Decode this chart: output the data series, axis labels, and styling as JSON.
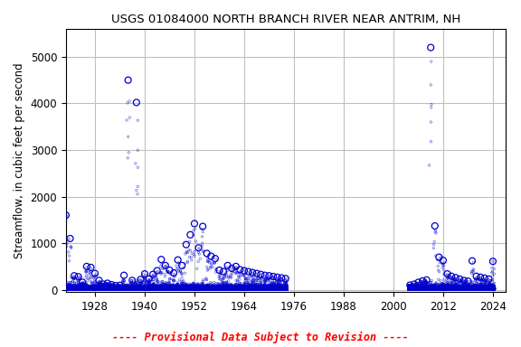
{
  "title": "USGS 01084000 NORTH BRANCH RIVER NEAR ANTRIM, NH",
  "ylabel": "Streamflow, in cubic feet per second",
  "footnote": "---- Provisional Data Subject to Revision ----",
  "footnote_color": "#ff0000",
  "marker_color": "#0000cc",
  "background_color": "#ffffff",
  "grid_color": "#c0c0c0",
  "xlim": [
    1921,
    2027
  ],
  "ylim": [
    -50,
    5600
  ],
  "xticks": [
    1928,
    1940,
    1952,
    1964,
    1976,
    1988,
    2000,
    2012,
    2024
  ],
  "yticks": [
    0,
    1000,
    2000,
    3000,
    4000,
    5000
  ],
  "title_fontsize": 9.5,
  "axis_fontsize": 8.5,
  "tick_fontsize": 8.5,
  "seed": 42,
  "era1_start": 1920,
  "era1_end": 1975,
  "era2_start": 2004,
  "era2_end": 2025,
  "annual_peaks": [
    [
      1921,
      1600
    ],
    [
      1922,
      1100
    ],
    [
      1923,
      300
    ],
    [
      1924,
      280
    ],
    [
      1925,
      160
    ],
    [
      1926,
      500
    ],
    [
      1927,
      480
    ],
    [
      1928,
      350
    ],
    [
      1929,
      200
    ],
    [
      1930,
      120
    ],
    [
      1931,
      140
    ],
    [
      1932,
      110
    ],
    [
      1933,
      90
    ],
    [
      1934,
      95
    ],
    [
      1935,
      310
    ],
    [
      1936,
      4500
    ],
    [
      1937,
      200
    ],
    [
      1938,
      4020
    ],
    [
      1939,
      220
    ],
    [
      1940,
      340
    ],
    [
      1941,
      230
    ],
    [
      1942,
      330
    ],
    [
      1943,
      410
    ],
    [
      1944,
      650
    ],
    [
      1945,
      520
    ],
    [
      1946,
      420
    ],
    [
      1947,
      360
    ],
    [
      1948,
      640
    ],
    [
      1949,
      520
    ],
    [
      1950,
      970
    ],
    [
      1951,
      1180
    ],
    [
      1952,
      1420
    ],
    [
      1953,
      900
    ],
    [
      1954,
      1360
    ],
    [
      1955,
      780
    ],
    [
      1956,
      720
    ],
    [
      1957,
      670
    ],
    [
      1958,
      420
    ],
    [
      1959,
      390
    ],
    [
      1960,
      520
    ],
    [
      1961,
      460
    ],
    [
      1962,
      500
    ],
    [
      1963,
      430
    ],
    [
      1964,
      410
    ],
    [
      1965,
      390
    ],
    [
      1966,
      370
    ],
    [
      1967,
      350
    ],
    [
      1968,
      330
    ],
    [
      1969,
      310
    ],
    [
      1970,
      300
    ],
    [
      1971,
      285
    ],
    [
      1972,
      270
    ],
    [
      1973,
      255
    ],
    [
      1974,
      240
    ],
    [
      2004,
      100
    ],
    [
      2005,
      120
    ],
    [
      2006,
      160
    ],
    [
      2007,
      190
    ],
    [
      2008,
      210
    ],
    [
      2009,
      5200
    ],
    [
      2010,
      1370
    ],
    [
      2011,
      700
    ],
    [
      2012,
      630
    ],
    [
      2013,
      340
    ],
    [
      2014,
      290
    ],
    [
      2015,
      260
    ],
    [
      2016,
      230
    ],
    [
      2017,
      200
    ],
    [
      2018,
      185
    ],
    [
      2019,
      620
    ],
    [
      2020,
      290
    ],
    [
      2021,
      270
    ],
    [
      2022,
      250
    ],
    [
      2023,
      230
    ],
    [
      2024,
      610
    ]
  ],
  "base_low": 5,
  "base_high": 60,
  "n_daily_per_year": 365
}
